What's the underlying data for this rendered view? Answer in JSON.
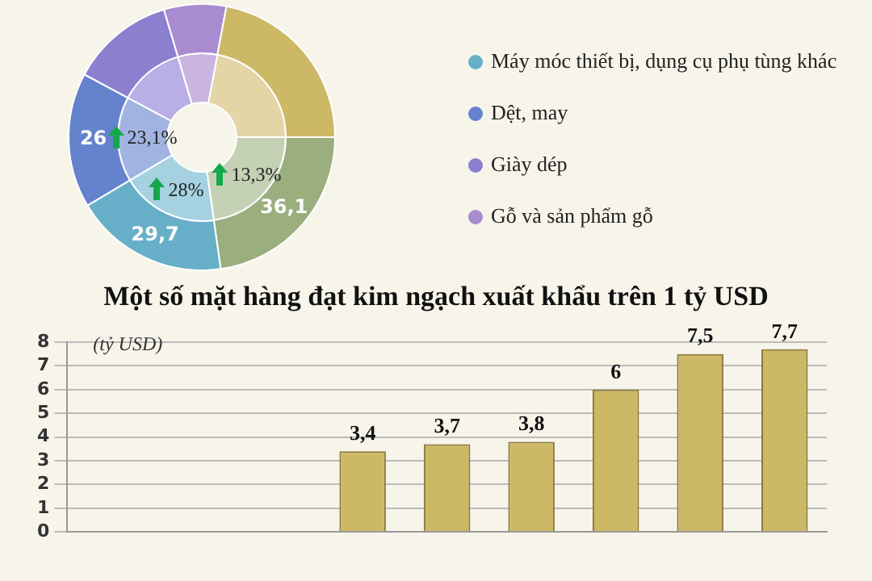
{
  "chart_data": [
    {
      "type": "donut",
      "categories": [
        null,
        "Máy móc thiết bị, dụng cụ phụ tùng khác",
        "Dệt, may",
        "Giày dép",
        "Gỗ và sản phẩm gỗ",
        null
      ],
      "series": [
        {
          "colors": [
            "#9aae7e",
            "#67afc8",
            "#6582cc",
            "#8b7fd0",
            "#a98bcf",
            "#cdb865"
          ],
          "values": [
            36.1,
            29.7,
            26,
            20,
            12,
            35
          ],
          "value_labels": [
            "36,1",
            "29,7",
            "26",
            null,
            null,
            null
          ]
        },
        {
          "colors": [
            "#c5d1b5",
            "#a6d1e1",
            "#a1b3e1",
            "#b9aee6",
            "#c9b5e0",
            "#e3d5a6"
          ],
          "values": [
            22.7,
            18.7,
            16.4,
            12.6,
            7.6,
            22
          ]
        }
      ],
      "annotations": [
        "13,3%",
        "28%",
        "23,1%"
      ],
      "legend": "right"
    },
    {
      "type": "bar",
      "title": "Một số mặt hàng đạt kim ngạch xuất khẩu trên 1 tỷ USD",
      "ylabel": "(tỷ USD)",
      "categories": [
        null,
        null,
        null,
        null,
        null,
        null,
        null,
        null,
        null
      ],
      "values": [
        null,
        null,
        null,
        3.4,
        3.7,
        3.8,
        6,
        7.5,
        7.7
      ],
      "value_labels": [
        null,
        null,
        null,
        "3,4",
        "3,7",
        "3,8",
        "6",
        "7,5",
        "7,7"
      ],
      "color": "#cdb865",
      "ylim": [
        0,
        8
      ],
      "yticks": [
        0,
        1,
        2,
        3,
        4,
        5,
        6,
        7,
        8
      ],
      "grid": "y"
    }
  ]
}
